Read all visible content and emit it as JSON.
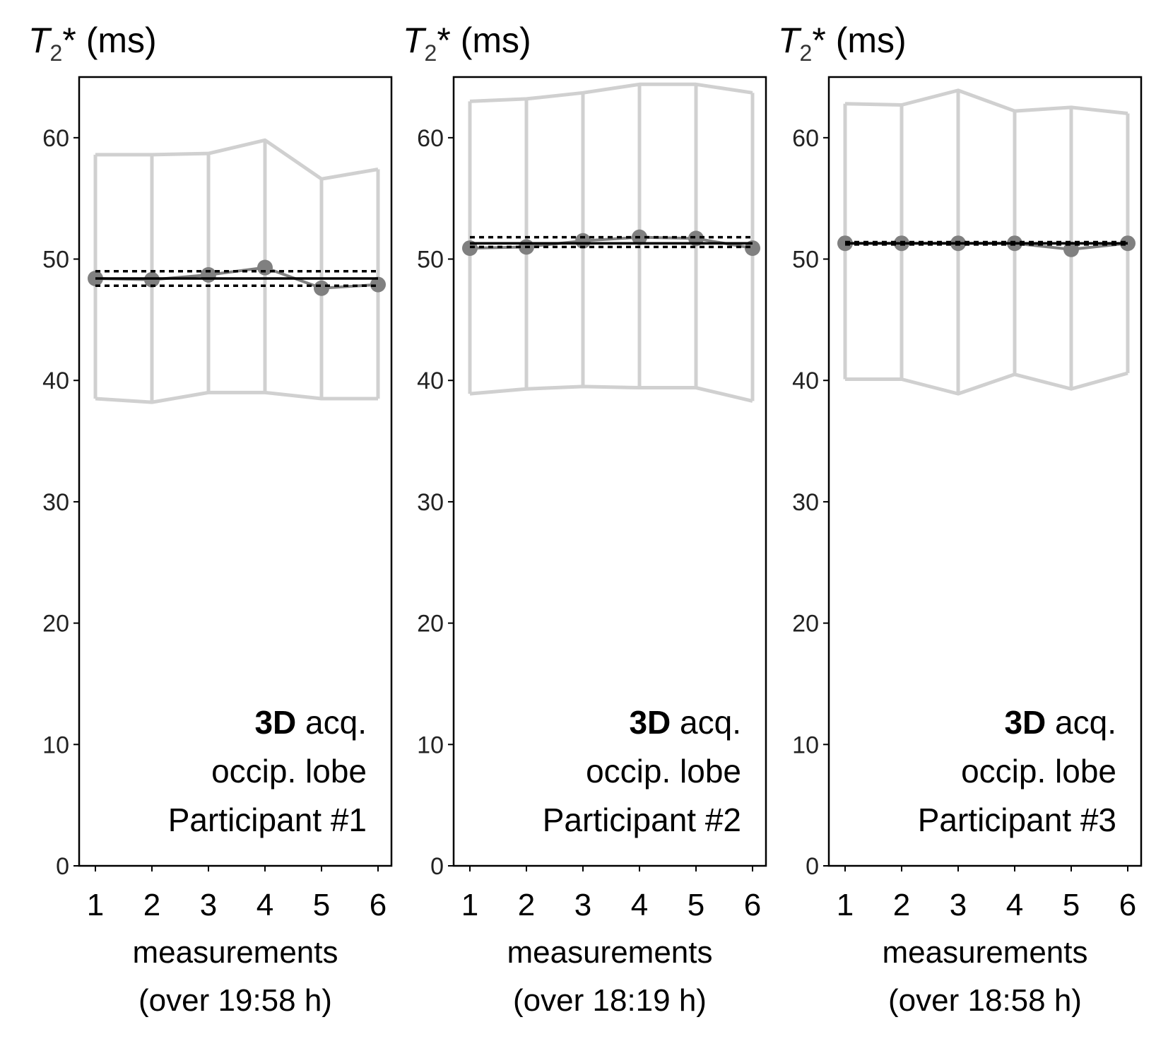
{
  "figure": {
    "colors": {
      "background": "#ffffff",
      "axis": "#000000",
      "tick_text": "#222222",
      "range_lines": "#d0d0d0",
      "points": "#808080",
      "mean_line": "#000000"
    }
  },
  "chart_data": [
    {
      "type": "line",
      "title": "",
      "ylabel_var": "T",
      "ylabel_sub": "2",
      "ylabel_rest": "* (ms)",
      "xlabel": "measurements",
      "xlabel2": "(over 19:58 h)",
      "x": [
        1,
        2,
        3,
        4,
        5,
        6
      ],
      "x_tick_labels": [
        "1",
        "2",
        "3",
        "4",
        "5",
        "6"
      ],
      "ylim": [
        0,
        65
      ],
      "y_ticks": [
        0,
        10,
        20,
        30,
        40,
        50,
        60
      ],
      "y_tick_labels": [
        "0",
        "10",
        "20",
        "30",
        "40",
        "50",
        "60"
      ],
      "series": [
        {
          "name": "T2* value",
          "style": "markers-line",
          "values": [
            48.4,
            48.3,
            48.7,
            49.3,
            47.6,
            47.9
          ]
        },
        {
          "name": "upper range",
          "style": "range",
          "values": [
            58.6,
            58.6,
            58.7,
            59.8,
            56.6,
            57.4
          ]
        },
        {
          "name": "lower range",
          "style": "range",
          "values": [
            38.5,
            38.2,
            39.0,
            39.0,
            38.5,
            38.5
          ]
        }
      ],
      "mean": 48.4,
      "mean_band": [
        47.8,
        49.0
      ],
      "annotation": {
        "bold": "3D",
        "rest": " acq.",
        "line2": "occip. lobe",
        "line3": "Participant #1"
      }
    },
    {
      "type": "line",
      "title": "",
      "ylabel_var": "T",
      "ylabel_sub": "2",
      "ylabel_rest": "* (ms)",
      "xlabel": "measurements",
      "xlabel2": "(over 18:19 h)",
      "x": [
        1,
        2,
        3,
        4,
        5,
        6
      ],
      "x_tick_labels": [
        "1",
        "2",
        "3",
        "4",
        "5",
        "6"
      ],
      "ylim": [
        0,
        65
      ],
      "y_ticks": [
        0,
        10,
        20,
        30,
        40,
        50,
        60
      ],
      "y_tick_labels": [
        "0",
        "10",
        "20",
        "30",
        "40",
        "50",
        "60"
      ],
      "series": [
        {
          "name": "T2* value",
          "style": "markers-line",
          "values": [
            50.9,
            51.0,
            51.5,
            51.8,
            51.7,
            50.9
          ]
        },
        {
          "name": "upper range",
          "style": "range",
          "values": [
            63.0,
            63.2,
            63.7,
            64.4,
            64.4,
            63.7
          ]
        },
        {
          "name": "lower range",
          "style": "range",
          "values": [
            38.9,
            39.3,
            39.5,
            39.4,
            39.4,
            38.3
          ]
        }
      ],
      "mean": 51.3,
      "mean_band": [
        51.0,
        51.8
      ],
      "annotation": {
        "bold": "3D",
        "rest": " acq.",
        "line2": "occip. lobe",
        "line3": "Participant #2"
      }
    },
    {
      "type": "line",
      "title": "",
      "ylabel_var": "T",
      "ylabel_sub": "2",
      "ylabel_rest": "* (ms)",
      "xlabel": "measurements",
      "xlabel2": "(over 18:58 h)",
      "x": [
        1,
        2,
        3,
        4,
        5,
        6
      ],
      "x_tick_labels": [
        "1",
        "2",
        "3",
        "4",
        "5",
        "6"
      ],
      "ylim": [
        0,
        65
      ],
      "y_ticks": [
        0,
        10,
        20,
        30,
        40,
        50,
        60
      ],
      "y_tick_labels": [
        "0",
        "10",
        "20",
        "30",
        "40",
        "50",
        "60"
      ],
      "series": [
        {
          "name": "T2* value",
          "style": "markers-line",
          "values": [
            51.3,
            51.3,
            51.3,
            51.3,
            50.8,
            51.3
          ]
        },
        {
          "name": "upper range",
          "style": "range",
          "values": [
            62.8,
            62.7,
            63.9,
            62.2,
            62.5,
            62.0
          ]
        },
        {
          "name": "lower range",
          "style": "range",
          "values": [
            40.1,
            40.1,
            38.9,
            40.5,
            39.3,
            40.6
          ]
        }
      ],
      "mean": 51.3,
      "mean_band": [
        51.2,
        51.4
      ],
      "annotation": {
        "bold": "3D",
        "rest": " acq.",
        "line2": "occip. lobe",
        "line3": "Participant #3"
      }
    }
  ]
}
